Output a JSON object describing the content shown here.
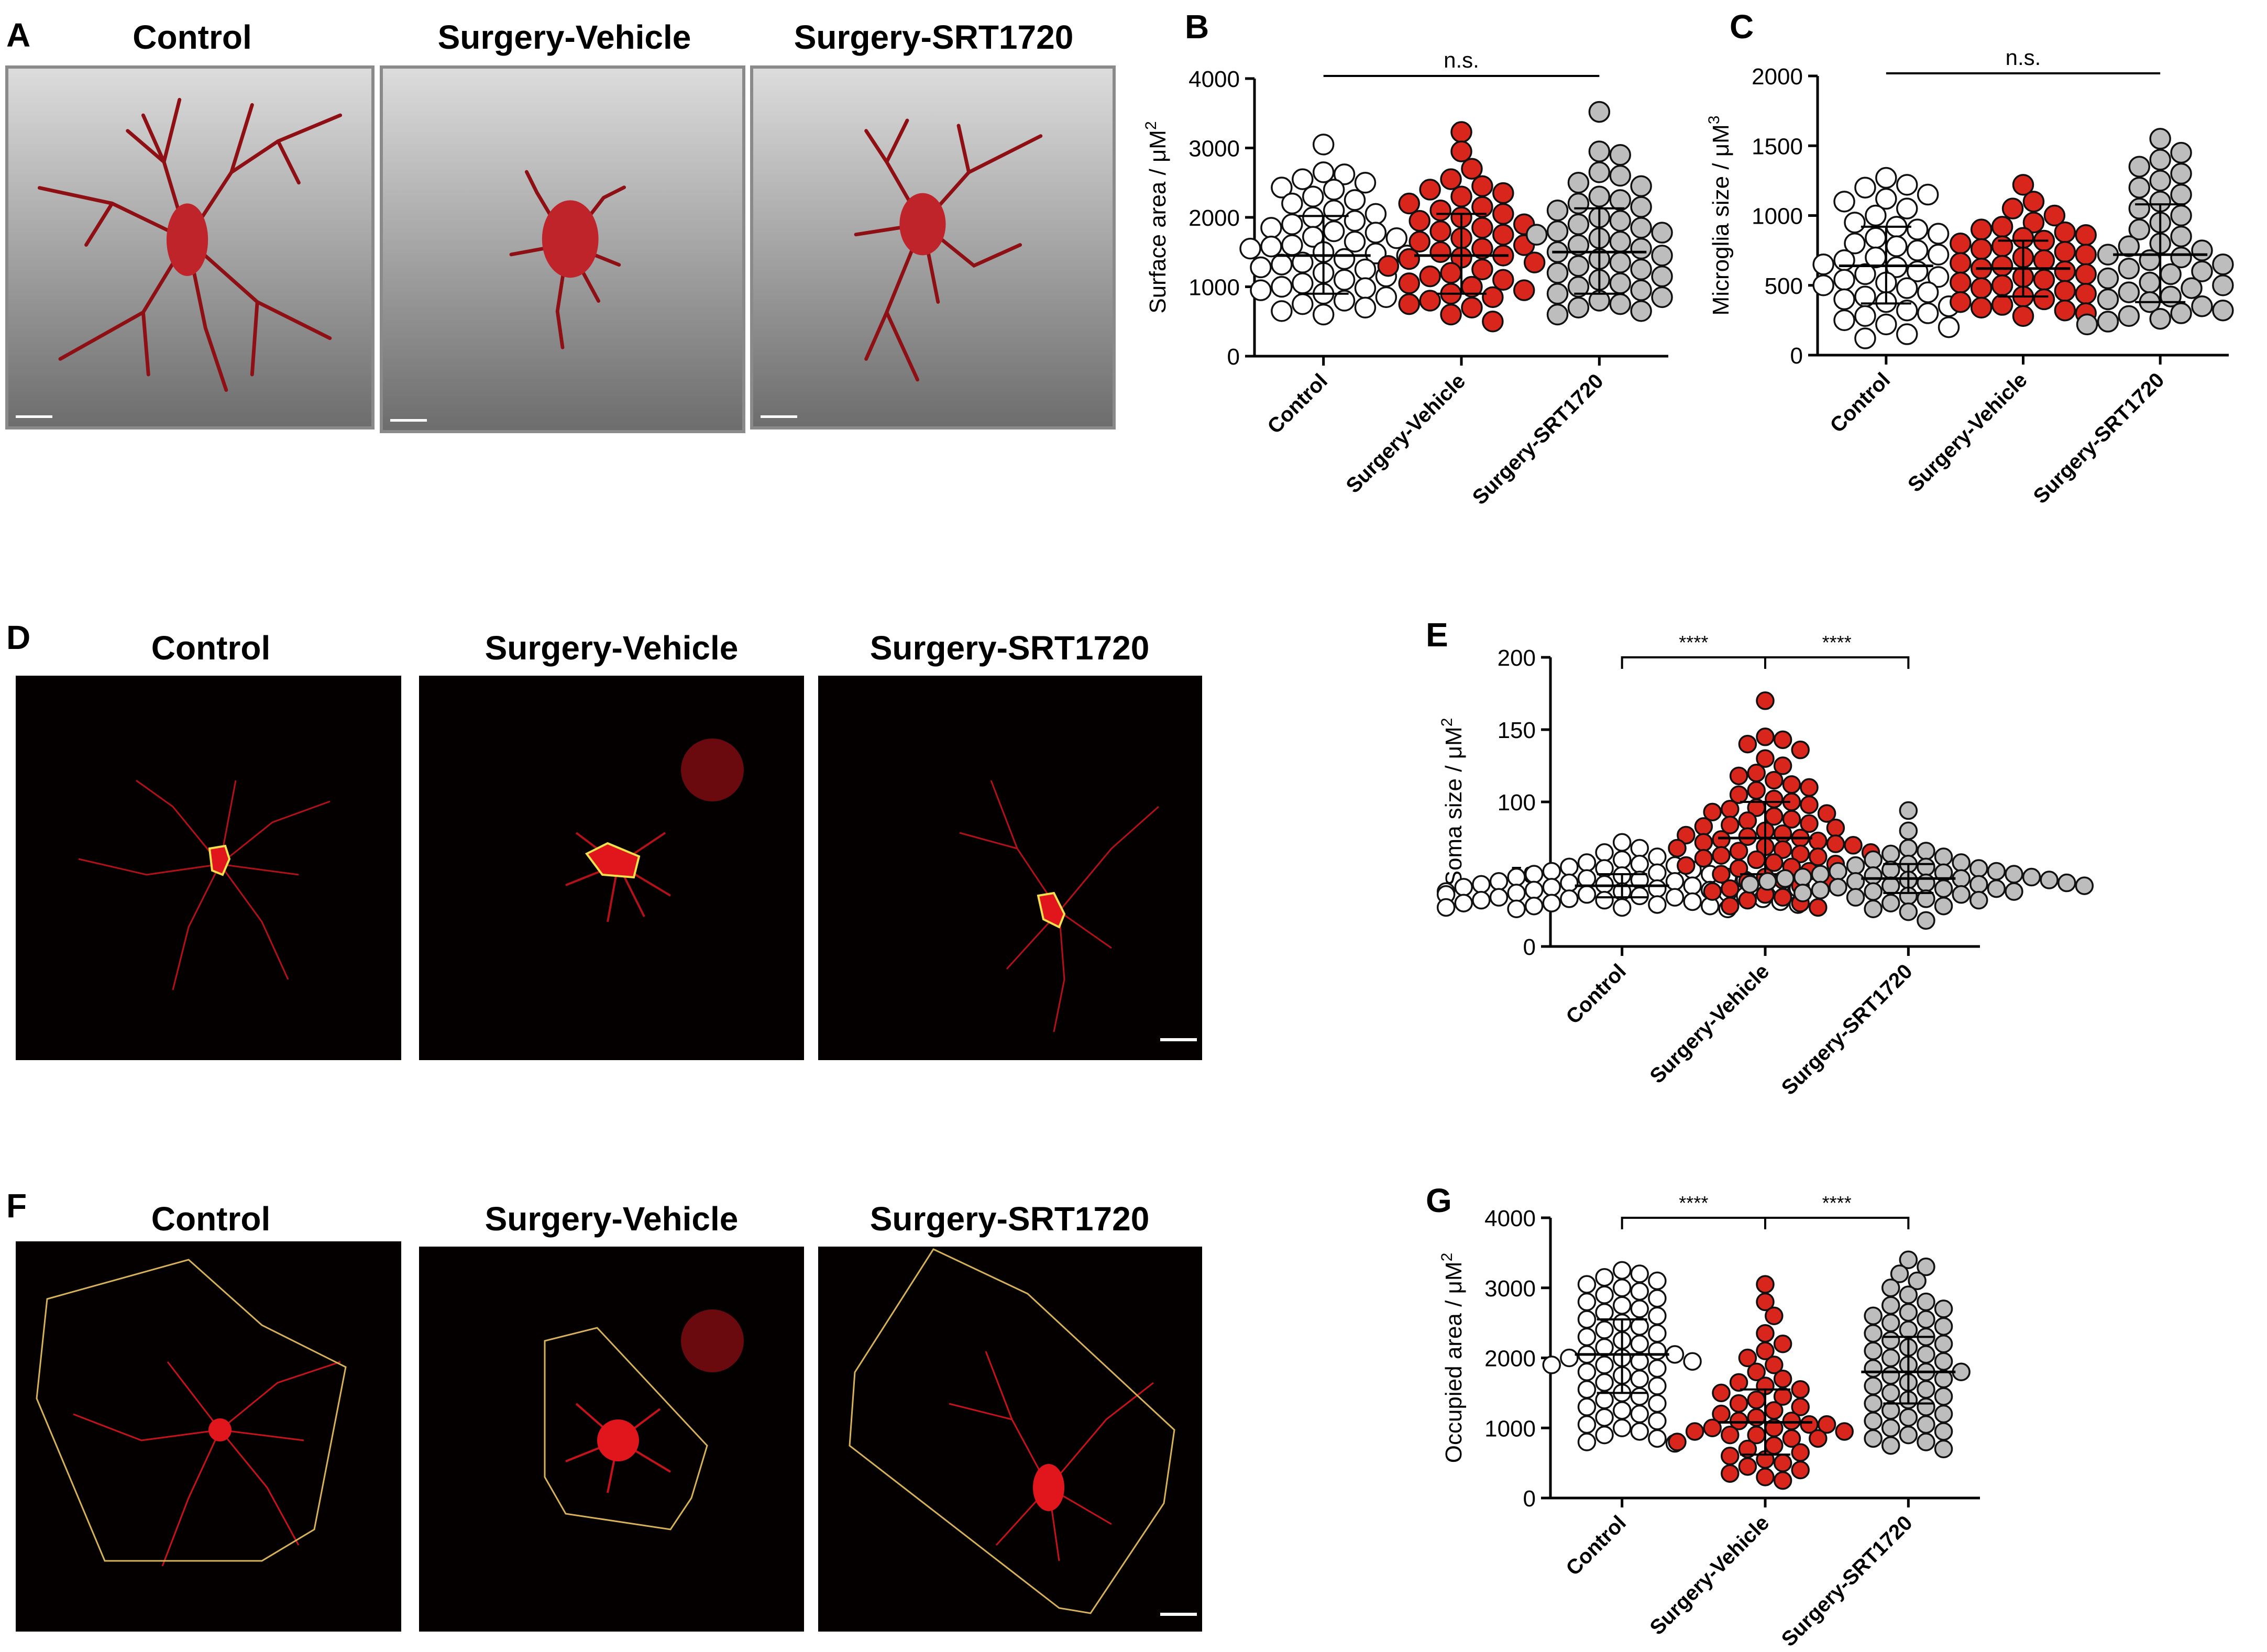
{
  "panels": {
    "A": "A",
    "B": "B",
    "C": "C",
    "D": "D",
    "E": "E",
    "F": "F",
    "G": "G"
  },
  "image_titles": {
    "control": "Control",
    "vehicle": "Surgery-Vehicle",
    "srt": "Surgery-SRT1720"
  },
  "colors": {
    "control_fill": "#ffffff",
    "vehicle_fill": "#d9261c",
    "srt_fill": "#bdbdbd",
    "cell_stain": "#c8121a",
    "soma_outline": "#f4e04d",
    "territory_outline": "#d8b25a",
    "render_background_top": "#dcdcdc",
    "render_background_bottom": "#6d6d6d"
  },
  "chart_data": [
    {
      "id": "B",
      "type": "scatter",
      "ylabel": "Surface area / μM",
      "ylabel_sup": "2",
      "categories": [
        "Control",
        "Surgery-Vehicle",
        "Surgery-SRT1720"
      ],
      "ylim": [
        0,
        4000
      ],
      "yticks": [
        0,
        1000,
        2000,
        3000,
        4000
      ],
      "significance": [
        {
          "from": 0,
          "to": 2,
          "label": "n.s.",
          "bracket": false
        }
      ],
      "series": [
        {
          "category": "Control",
          "mean": 1450,
          "sd_low": 900,
          "sd_high": 2020,
          "values": [
            3050,
            2650,
            2620,
            2550,
            2500,
            2430,
            2400,
            2300,
            2250,
            2200,
            2100,
            2050,
            2000,
            1950,
            1900,
            1850,
            1800,
            1780,
            1720,
            1700,
            1650,
            1600,
            1580,
            1550,
            1500,
            1480,
            1450,
            1400,
            1350,
            1320,
            1280,
            1250,
            1200,
            1150,
            1100,
            1050,
            1000,
            980,
            950,
            900,
            850,
            800,
            750,
            700,
            650,
            600
          ]
        },
        {
          "category": "Surgery-Vehicle",
          "mean": 1450,
          "sd_low": 900,
          "sd_high": 2050,
          "values": [
            3230,
            2950,
            2700,
            2550,
            2450,
            2400,
            2350,
            2300,
            2200,
            2150,
            2100,
            2050,
            2000,
            1950,
            1900,
            1850,
            1800,
            1750,
            1700,
            1650,
            1600,
            1550,
            1500,
            1450,
            1420,
            1400,
            1350,
            1300,
            1250,
            1200,
            1150,
            1100,
            1050,
            1000,
            950,
            900,
            850,
            800,
            750,
            700,
            600,
            500
          ]
        },
        {
          "category": "Surgery-SRT1720",
          "mean": 1500,
          "sd_low": 900,
          "sd_high": 2130,
          "values": [
            3520,
            2950,
            2900,
            2650,
            2600,
            2500,
            2450,
            2300,
            2250,
            2200,
            2150,
            2100,
            2000,
            1950,
            1900,
            1850,
            1800,
            1780,
            1750,
            1700,
            1650,
            1600,
            1550,
            1500,
            1450,
            1400,
            1350,
            1300,
            1250,
            1200,
            1150,
            1100,
            1050,
            1000,
            950,
            900,
            850,
            800,
            750,
            700,
            650,
            600
          ]
        }
      ]
    },
    {
      "id": "C",
      "type": "scatter",
      "ylabel": "Microglia size / μM",
      "ylabel_sup": "3",
      "categories": [
        "Control",
        "Surgery-Vehicle",
        "Surgery-SRT1720"
      ],
      "ylim": [
        0,
        2000
      ],
      "yticks": [
        0,
        500,
        1000,
        1500,
        2000
      ],
      "significance": [
        {
          "from": 0,
          "to": 2,
          "label": "n.s.",
          "bracket": false
        }
      ],
      "series": [
        {
          "category": "Control",
          "mean": 640,
          "sd_low": 370,
          "sd_high": 920,
          "values": [
            1270,
            1220,
            1200,
            1150,
            1120,
            1100,
            1050,
            1000,
            950,
            920,
            900,
            870,
            840,
            800,
            780,
            750,
            720,
            700,
            680,
            650,
            630,
            600,
            580,
            560,
            540,
            520,
            500,
            480,
            450,
            420,
            400,
            380,
            350,
            320,
            300,
            280,
            250,
            220,
            200,
            150,
            120
          ]
        },
        {
          "category": "Surgery-Vehicle",
          "mean": 620,
          "sd_low": 420,
          "sd_high": 820,
          "values": [
            1220,
            1100,
            1050,
            1000,
            950,
            920,
            900,
            880,
            860,
            840,
            820,
            800,
            780,
            760,
            740,
            720,
            700,
            680,
            660,
            640,
            620,
            600,
            580,
            560,
            540,
            520,
            500,
            480,
            460,
            440,
            420,
            400,
            380,
            360,
            340,
            320,
            300,
            280
          ]
        },
        {
          "category": "Surgery-SRT1720",
          "mean": 720,
          "sd_low": 380,
          "sd_high": 1080,
          "values": [
            1550,
            1450,
            1400,
            1350,
            1300,
            1250,
            1200,
            1150,
            1100,
            1050,
            1000,
            950,
            900,
            850,
            800,
            780,
            750,
            720,
            700,
            680,
            650,
            620,
            600,
            580,
            550,
            520,
            500,
            480,
            450,
            420,
            400,
            380,
            350,
            320,
            300,
            280,
            260,
            240,
            220
          ]
        }
      ]
    },
    {
      "id": "E",
      "type": "scatter",
      "ylabel": "Soma size / μM",
      "ylabel_sup": "2",
      "categories": [
        "Control",
        "Surgery-Vehicle",
        "Surgery-SRT1720"
      ],
      "ylim": [
        0,
        200
      ],
      "yticks": [
        0,
        50,
        100,
        150,
        200
      ],
      "significance": [
        {
          "from": 0,
          "to": 1,
          "label": "****",
          "bracket": true
        },
        {
          "from": 1,
          "to": 2,
          "label": "****",
          "bracket": true
        }
      ],
      "series": [
        {
          "category": "Control",
          "mean": 42,
          "sd_low": 34,
          "sd_high": 50,
          "values": [
            72,
            68,
            65,
            62,
            60,
            58,
            57,
            56,
            55,
            54,
            53,
            52,
            51,
            50,
            50,
            49,
            48,
            48,
            47,
            46,
            46,
            45,
            45,
            44,
            44,
            43,
            43,
            42,
            42,
            41,
            41,
            40,
            40,
            39,
            39,
            38,
            38,
            37,
            37,
            36,
            36,
            35,
            35,
            34,
            34,
            33,
            33,
            32,
            32,
            31,
            31,
            30,
            30,
            29,
            29,
            28,
            28,
            27,
            27,
            26,
            26
          ]
        },
        {
          "category": "Surgery-Vehicle",
          "mean": 75,
          "sd_low": 50,
          "sd_high": 100,
          "values": [
            170,
            145,
            143,
            140,
            136,
            130,
            125,
            120,
            118,
            115,
            112,
            110,
            108,
            105,
            102,
            100,
            98,
            96,
            95,
            93,
            92,
            90,
            88,
            87,
            85,
            84,
            83,
            82,
            80,
            78,
            77,
            76,
            75,
            74,
            73,
            72,
            71,
            70,
            69,
            68,
            67,
            66,
            65,
            64,
            63,
            62,
            61,
            60,
            58,
            57,
            56,
            55,
            54,
            52,
            50,
            48,
            46,
            45,
            44,
            42,
            40,
            38,
            36,
            34,
            32,
            30,
            28,
            27
          ]
        },
        {
          "category": "Surgery-SRT1720",
          "mean": 47,
          "sd_low": 37,
          "sd_high": 57,
          "values": [
            94,
            80,
            68,
            66,
            64,
            62,
            60,
            58,
            57,
            56,
            55,
            54,
            53,
            52,
            52,
            51,
            50,
            50,
            49,
            48,
            48,
            47,
            47,
            46,
            46,
            45,
            45,
            44,
            44,
            43,
            43,
            42,
            42,
            41,
            40,
            40,
            39,
            38,
            38,
            37,
            36,
            35,
            34,
            33,
            32,
            30,
            28,
            26,
            24,
            18
          ]
        }
      ]
    },
    {
      "id": "G",
      "type": "scatter",
      "ylabel": "Occupied area / μM",
      "ylabel_sup": "2",
      "categories": [
        "Control",
        "Surgery-Vehicle",
        "Surgery-SRT1720"
      ],
      "ylim": [
        0,
        4000
      ],
      "yticks": [
        0,
        1000,
        2000,
        3000,
        4000
      ],
      "significance": [
        {
          "from": 0,
          "to": 1,
          "label": "****",
          "bracket": true
        },
        {
          "from": 1,
          "to": 2,
          "label": "****",
          "bracket": true
        }
      ],
      "series": [
        {
          "category": "Control",
          "mean": 2050,
          "sd_low": 1500,
          "sd_high": 2550,
          "values": [
            3250,
            3200,
            3150,
            3100,
            3050,
            3000,
            2950,
            2900,
            2850,
            2800,
            2750,
            2700,
            2650,
            2600,
            2550,
            2500,
            2450,
            2400,
            2350,
            2300,
            2250,
            2200,
            2150,
            2100,
            2050,
            2050,
            2000,
            2000,
            1950,
            1950,
            1900,
            1900,
            1850,
            1800,
            1750,
            1700,
            1650,
            1600,
            1550,
            1500,
            1450,
            1400,
            1350,
            1300,
            1250,
            1200,
            1150,
            1100,
            1050,
            1000,
            950,
            900,
            850,
            800,
            780
          ]
        },
        {
          "category": "Surgery-Vehicle",
          "mean": 1080,
          "sd_low": 620,
          "sd_high": 1550,
          "values": [
            3050,
            2800,
            2600,
            2350,
            2200,
            2100,
            2000,
            1900,
            1800,
            1700,
            1650,
            1600,
            1550,
            1500,
            1450,
            1400,
            1350,
            1300,
            1250,
            1200,
            1150,
            1100,
            1100,
            1050,
            1050,
            1000,
            1000,
            950,
            950,
            900,
            900,
            850,
            850,
            800,
            750,
            700,
            650,
            600,
            550,
            500,
            450,
            400,
            350,
            300,
            250
          ]
        },
        {
          "category": "Surgery-SRT1720",
          "mean": 1800,
          "sd_low": 1350,
          "sd_high": 2300,
          "values": [
            3400,
            3300,
            3200,
            3100,
            3000,
            2900,
            2800,
            2750,
            2700,
            2650,
            2600,
            2550,
            2500,
            2450,
            2400,
            2350,
            2300,
            2250,
            2200,
            2150,
            2100,
            2050,
            2000,
            1950,
            1900,
            1850,
            1800,
            1800,
            1750,
            1700,
            1650,
            1600,
            1550,
            1500,
            1450,
            1400,
            1350,
            1300,
            1250,
            1200,
            1150,
            1100,
            1050,
            1000,
            950,
            900,
            850,
            800,
            750,
            700
          ]
        }
      ]
    }
  ]
}
